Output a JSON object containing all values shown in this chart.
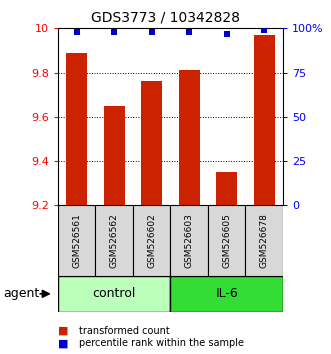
{
  "title": "GDS3773 / 10342828",
  "samples": [
    "GSM526561",
    "GSM526562",
    "GSM526602",
    "GSM526603",
    "GSM526605",
    "GSM526678"
  ],
  "bar_values": [
    9.89,
    9.65,
    9.76,
    9.81,
    9.35,
    9.97
  ],
  "percentile_values": [
    98,
    98,
    98,
    98,
    97,
    99
  ],
  "ylim_left": [
    9.2,
    10.0
  ],
  "ylim_right": [
    0,
    100
  ],
  "yticks_left": [
    9.2,
    9.4,
    9.6,
    9.8,
    10.0
  ],
  "ytick_labels_left": [
    "9.2",
    "9.4",
    "9.6",
    "9.8",
    "10"
  ],
  "yticks_right": [
    0,
    25,
    50,
    75,
    100
  ],
  "ytick_labels_right": [
    "0",
    "25",
    "50",
    "75",
    "100%"
  ],
  "bar_color": "#cc2200",
  "dot_color": "#0000cc",
  "groups": [
    {
      "label": "control",
      "indices": [
        0,
        1,
        2
      ],
      "color": "#bbffbb"
    },
    {
      "label": "IL-6",
      "indices": [
        3,
        4,
        5
      ],
      "color": "#33dd33"
    }
  ],
  "agent_label": "agent",
  "bar_width": 0.55,
  "base_value": 9.2,
  "sample_box_color": "#d8d8d8",
  "dotted_yticks": [
    9.4,
    9.6,
    9.8,
    10.0
  ]
}
